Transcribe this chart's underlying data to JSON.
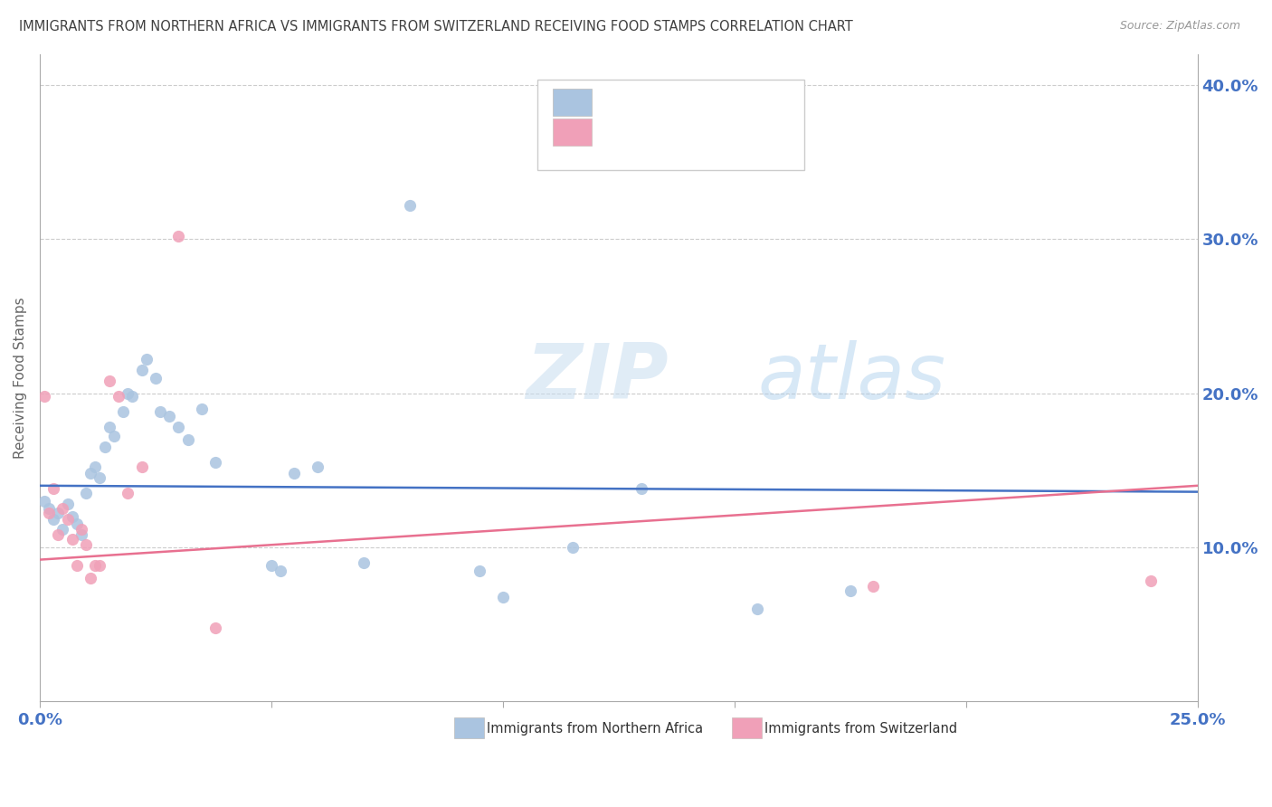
{
  "title": "IMMIGRANTS FROM NORTHERN AFRICA VS IMMIGRANTS FROM SWITZERLAND RECEIVING FOOD STAMPS CORRELATION CHART",
  "source": "Source: ZipAtlas.com",
  "ylabel": "Receiving Food Stamps",
  "ylabel_right_ticks": [
    "10.0%",
    "20.0%",
    "30.0%",
    "40.0%"
  ],
  "ylabel_right_vals": [
    0.1,
    0.2,
    0.3,
    0.4
  ],
  "watermark_zip": "ZIP",
  "watermark_atlas": "atlas",
  "blue_color": "#aac4e0",
  "pink_color": "#f0a0b8",
  "blue_line_color": "#4472c4",
  "pink_line_color": "#e87090",
  "title_color": "#404040",
  "axis_label_color": "#4472c4",
  "scatter_blue": {
    "x": [
      0.001,
      0.002,
      0.003,
      0.004,
      0.005,
      0.006,
      0.007,
      0.008,
      0.009,
      0.01,
      0.011,
      0.012,
      0.013,
      0.014,
      0.015,
      0.016,
      0.018,
      0.019,
      0.02,
      0.022,
      0.023,
      0.025,
      0.026,
      0.028,
      0.03,
      0.032,
      0.035,
      0.038,
      0.05,
      0.052,
      0.055,
      0.06,
      0.07,
      0.08,
      0.095,
      0.1,
      0.115,
      0.13,
      0.155,
      0.175
    ],
    "y": [
      0.13,
      0.125,
      0.118,
      0.122,
      0.112,
      0.128,
      0.12,
      0.115,
      0.108,
      0.135,
      0.148,
      0.152,
      0.145,
      0.165,
      0.178,
      0.172,
      0.188,
      0.2,
      0.198,
      0.215,
      0.222,
      0.21,
      0.188,
      0.185,
      0.178,
      0.17,
      0.19,
      0.155,
      0.088,
      0.085,
      0.148,
      0.152,
      0.09,
      0.322,
      0.085,
      0.068,
      0.1,
      0.138,
      0.06,
      0.072
    ]
  },
  "scatter_pink": {
    "x": [
      0.001,
      0.002,
      0.003,
      0.004,
      0.005,
      0.006,
      0.007,
      0.008,
      0.009,
      0.01,
      0.011,
      0.012,
      0.013,
      0.015,
      0.017,
      0.019,
      0.022,
      0.03,
      0.038,
      0.18,
      0.24
    ],
    "y": [
      0.198,
      0.122,
      0.138,
      0.108,
      0.125,
      0.118,
      0.105,
      0.088,
      0.112,
      0.102,
      0.08,
      0.088,
      0.088,
      0.208,
      0.198,
      0.135,
      0.152,
      0.302,
      0.048,
      0.075,
      0.078
    ]
  },
  "blue_line_x": [
    0.0,
    0.25
  ],
  "blue_line_y": [
    0.14,
    0.136
  ],
  "pink_line_x": [
    0.0,
    0.25
  ],
  "pink_line_y": [
    0.092,
    0.14
  ],
  "xlim": [
    0.0,
    0.25
  ],
  "ylim": [
    0.0,
    0.42
  ]
}
